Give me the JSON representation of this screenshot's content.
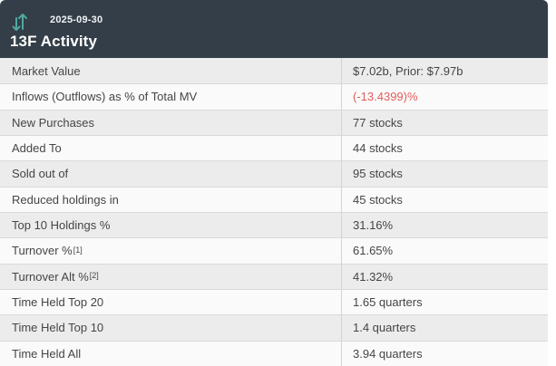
{
  "header": {
    "date": "2025-09-30",
    "title": "13F Activity",
    "icon": "swap-vertical-icon"
  },
  "table": {
    "rows": [
      {
        "label": "Market Value",
        "sup": "",
        "value": "$7.02b, Prior: $7.97b",
        "value_color": "default"
      },
      {
        "label": "Inflows (Outflows) as % of Total MV",
        "sup": "",
        "value": "(-13.4399)%",
        "value_color": "negative"
      },
      {
        "label": "New Purchases",
        "sup": "",
        "value": "77 stocks",
        "value_color": "default"
      },
      {
        "label": "Added To",
        "sup": "",
        "value": "44 stocks",
        "value_color": "default"
      },
      {
        "label": "Sold out of",
        "sup": "",
        "value": "95 stocks",
        "value_color": "default"
      },
      {
        "label": "Reduced holdings in",
        "sup": "",
        "value": "45 stocks",
        "value_color": "default"
      },
      {
        "label": "Top 10 Holdings %",
        "sup": "",
        "value": "31.16%",
        "value_color": "default"
      },
      {
        "label": "Turnover %",
        "sup": "[1]",
        "value": "61.65%",
        "value_color": "default"
      },
      {
        "label": "Turnover Alt %",
        "sup": "[2]",
        "value": "41.32%",
        "value_color": "default"
      },
      {
        "label": "Time Held Top 20",
        "sup": "",
        "value": "1.65 quarters",
        "value_color": "default"
      },
      {
        "label": "Time Held Top 10",
        "sup": "",
        "value": "1.4 quarters",
        "value_color": "default"
      },
      {
        "label": "Time Held All",
        "sup": "",
        "value": "3.94 quarters",
        "value_color": "default"
      }
    ]
  },
  "colors": {
    "header_bg": "#333e48",
    "accent_teal": "#4fa99e",
    "negative_red": "#e45c5c",
    "row_alt_bg": "#ececec",
    "row_bg": "#fafafa"
  }
}
